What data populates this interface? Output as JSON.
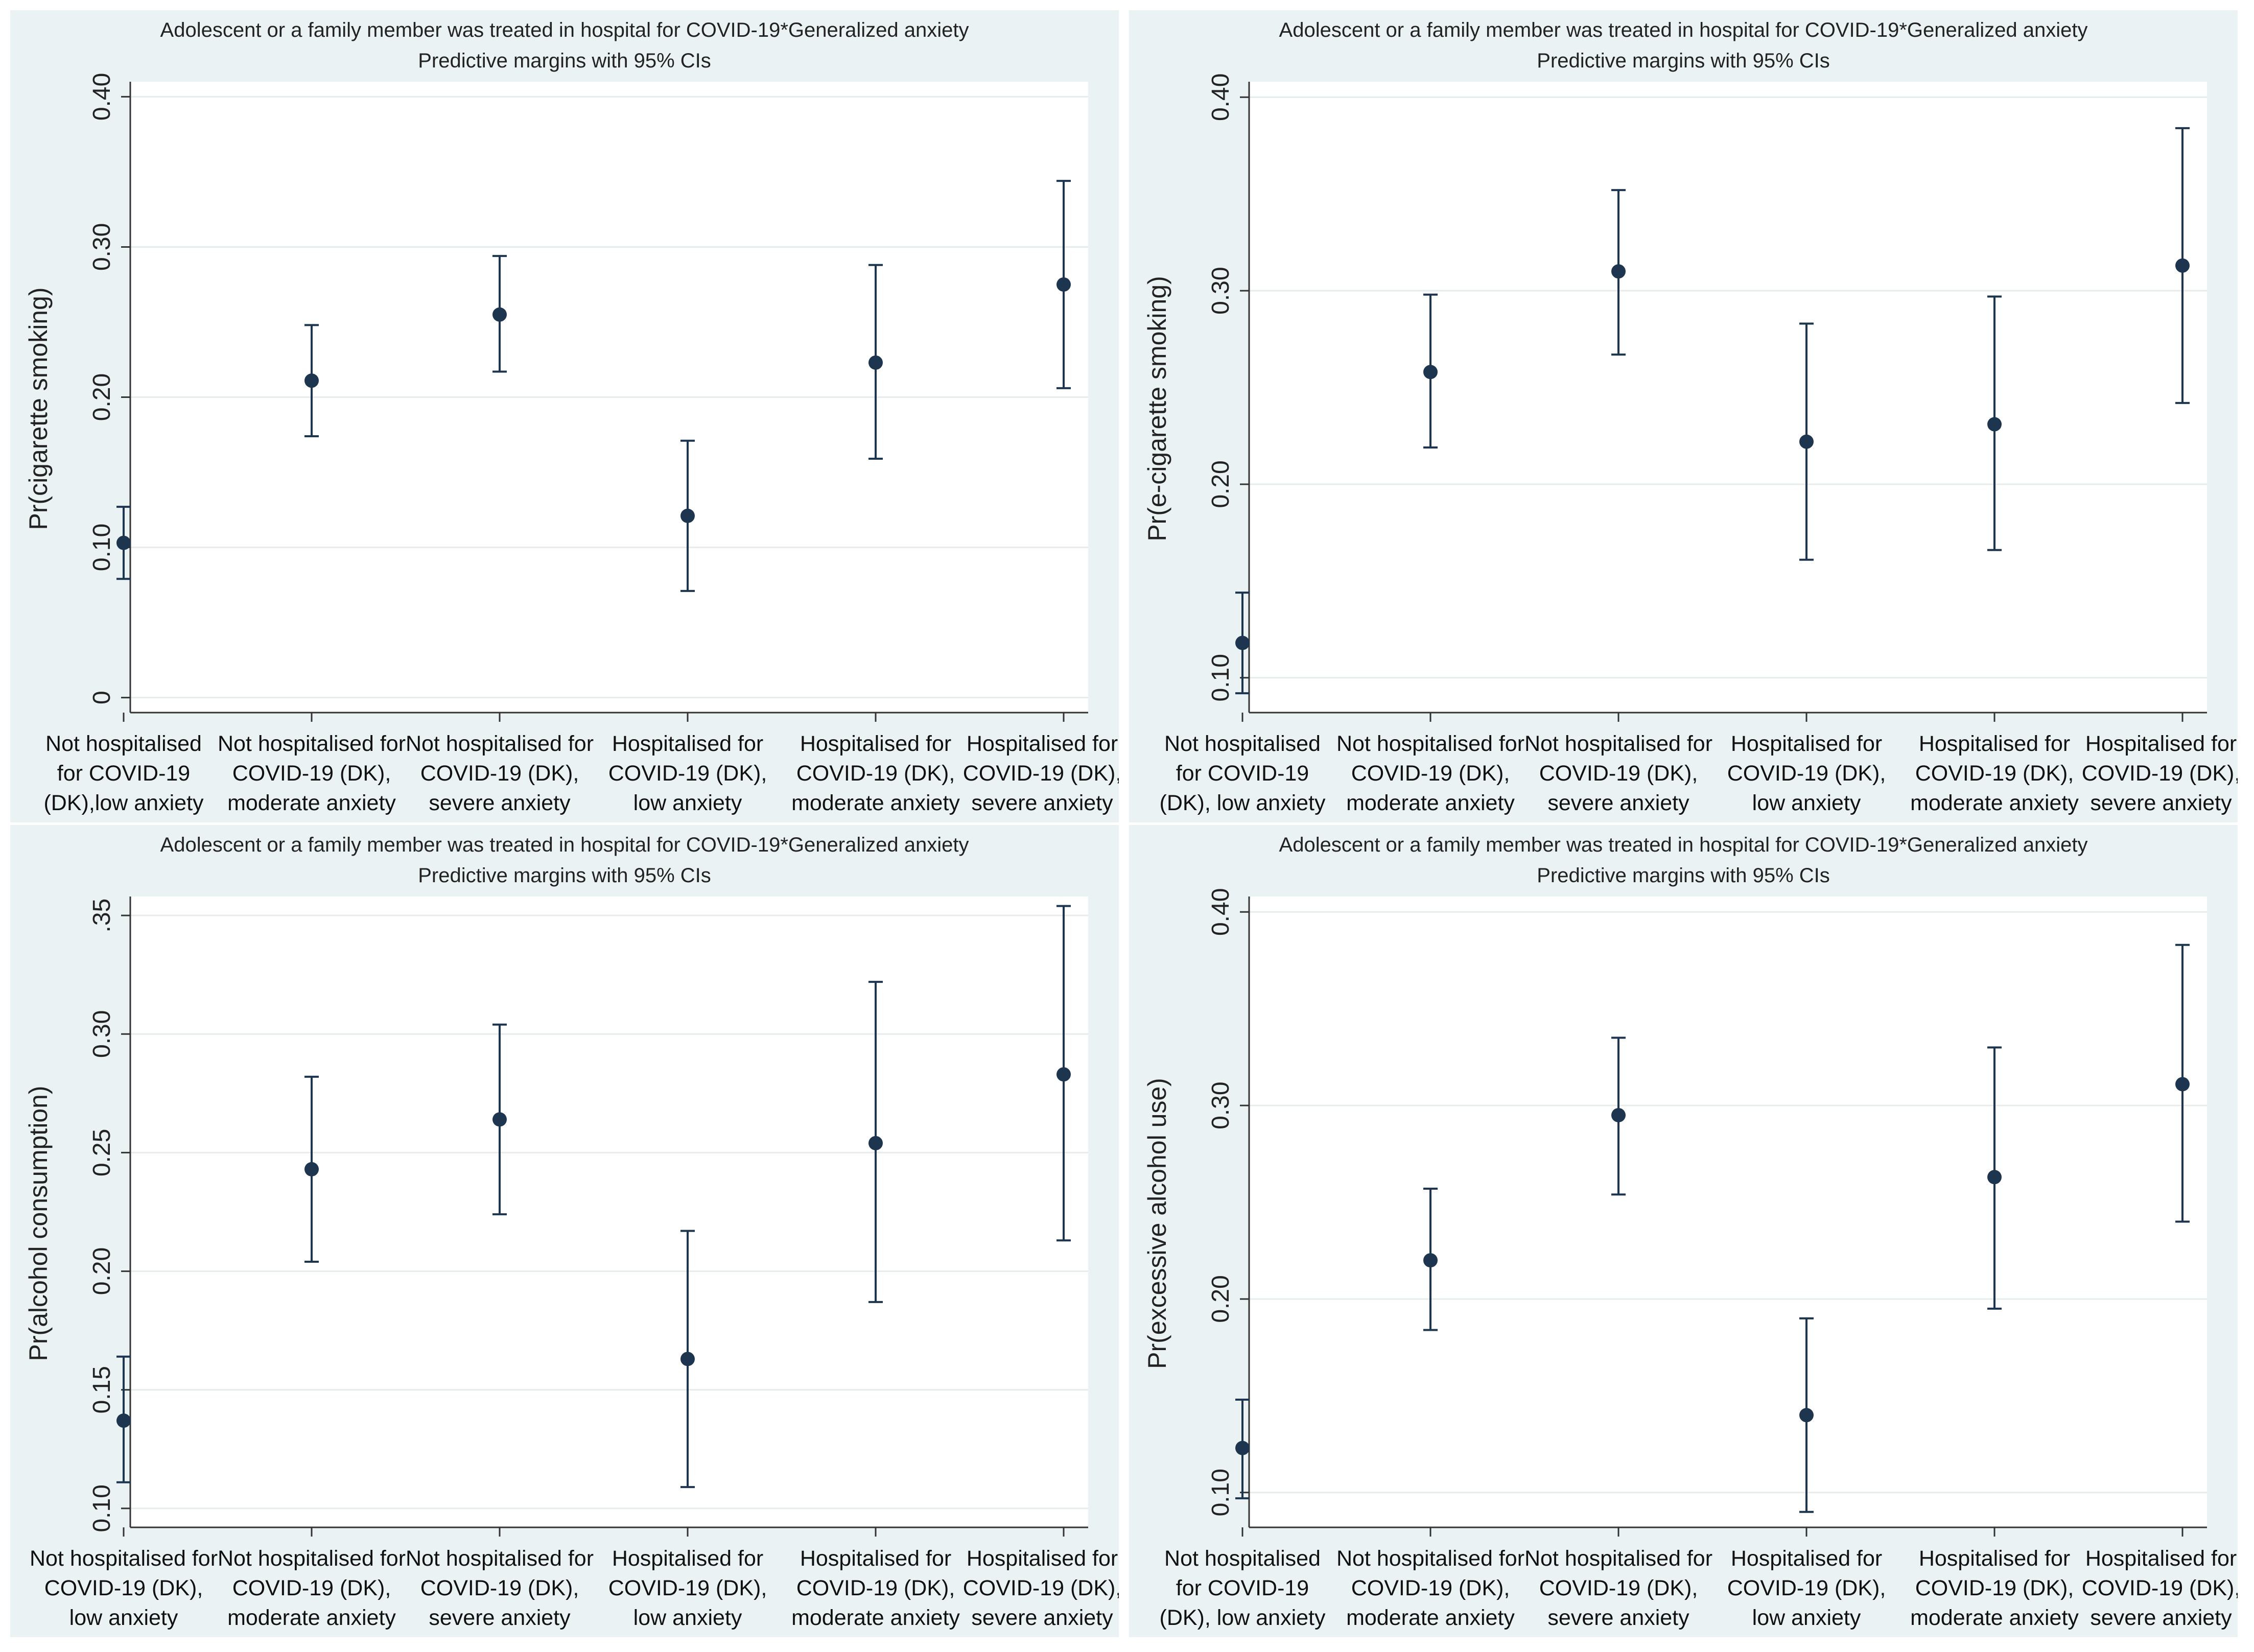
{
  "chart_data": [
    {
      "type": "scatter",
      "panel": "a",
      "title": "Adolescent or a family member was treated in hospital for COVID-19*Generalized anxiety",
      "subtitle": "Predictive margins with 95% CIs",
      "ylabel": "Pr(cigarette smoking)",
      "yticks": [
        "0",
        "0.10",
        "0.20",
        "0.30",
        "0.40"
      ],
      "ytick_values": [
        0,
        0.1,
        0.2,
        0.3,
        0.4
      ],
      "ylim": [
        -0.01,
        0.41
      ],
      "categories": [
        [
          "Not hospitalised",
          "for COVID-19",
          "(DK),low anxiety"
        ],
        [
          "Not hospitalised for",
          "COVID-19 (DK),",
          "moderate anxiety"
        ],
        [
          "Not hospitalised for",
          "COVID-19 (DK),",
          "severe anxiety"
        ],
        [
          "Hospitalised for",
          "COVID-19 (DK),",
          "low anxiety"
        ],
        [
          "Hospitalised for",
          "COVID-19 (DK),",
          "moderate anxiety"
        ],
        [
          "Hospitalised for",
          "COVID-19 (DK),",
          "severe anxiety"
        ]
      ],
      "values": [
        0.103,
        0.211,
        0.255,
        0.121,
        0.223,
        0.275
      ],
      "ci_low": [
        0.079,
        0.174,
        0.217,
        0.071,
        0.159,
        0.206
      ],
      "ci_high": [
        0.127,
        0.248,
        0.294,
        0.171,
        0.288,
        0.344
      ]
    },
    {
      "type": "scatter",
      "panel": "b",
      "title": "Adolescent or a family member was treated in hospital for COVID-19*Generalized anxiety",
      "subtitle": "Predictive margins with 95% CIs",
      "ylabel": "Pr(e-cigarette smoking)",
      "yticks": [
        "0.10",
        "0.20",
        "0.30",
        "0.40"
      ],
      "ytick_values": [
        0.1,
        0.2,
        0.3,
        0.4
      ],
      "ylim": [
        0.082,
        0.408
      ],
      "categories": [
        [
          "Not hospitalised",
          "for COVID-19",
          "(DK), low anxiety"
        ],
        [
          "Not hospitalised for",
          "COVID-19 (DK),",
          "moderate anxiety"
        ],
        [
          "Not hospitalised for",
          "COVID-19 (DK),",
          "severe anxiety"
        ],
        [
          "Hospitalised for",
          "COVID-19 (DK),",
          "low anxiety"
        ],
        [
          "Hospitalised for",
          "COVID-19 (DK),",
          "moderate anxiety"
        ],
        [
          "Hospitalised for",
          "COVID-19 (DK),",
          "severe anxiety"
        ]
      ],
      "values": [
        0.118,
        0.258,
        0.31,
        0.222,
        0.231,
        0.313
      ],
      "ci_low": [
        0.092,
        0.219,
        0.267,
        0.161,
        0.166,
        0.242
      ],
      "ci_high": [
        0.144,
        0.298,
        0.352,
        0.283,
        0.297,
        0.384
      ]
    },
    {
      "type": "scatter",
      "panel": "c",
      "title": "Adolescent or a family member was treated in hospital for COVID-19*Generalized anxiety",
      "subtitle": "Predictive margins with 95% CIs",
      "ylabel": "Pr(alcohol consumption)",
      "yticks": [
        "0.10",
        "0.15",
        "0.20",
        "0.25",
        "0.30",
        ".35"
      ],
      "ytick_values": [
        0.1,
        0.15,
        0.2,
        0.25,
        0.3,
        0.35
      ],
      "ylim": [
        0.092,
        0.358
      ],
      "categories": [
        [
          "Not hospitalised for",
          "COVID-19 (DK),",
          "low anxiety"
        ],
        [
          "Not hospitalised for",
          "COVID-19 (DK),",
          "moderate anxiety"
        ],
        [
          "Not hospitalised for",
          "COVID-19 (DK),",
          "severe anxiety"
        ],
        [
          "Hospitalised for",
          "COVID-19 (DK),",
          "low anxiety"
        ],
        [
          "Hospitalised for",
          "COVID-19 (DK),",
          "moderate anxiety"
        ],
        [
          "Hospitalised for",
          "COVID-19 (DK),",
          "severe anxiety"
        ]
      ],
      "values": [
        0.137,
        0.243,
        0.264,
        0.163,
        0.254,
        0.283
      ],
      "ci_low": [
        0.111,
        0.204,
        0.224,
        0.109,
        0.187,
        0.213
      ],
      "ci_high": [
        0.164,
        0.282,
        0.304,
        0.217,
        0.322,
        0.354
      ]
    },
    {
      "type": "scatter",
      "panel": "d",
      "title": "Adolescent or a family member was treated in hospital for COVID-19*Generalized anxiety",
      "subtitle": "Predictive margins with 95% CIs",
      "ylabel": "Pr(excessive alcohol use)",
      "yticks": [
        "0.10",
        "0.20",
        "0.30",
        "0.40"
      ],
      "ytick_values": [
        0.1,
        0.2,
        0.3,
        0.4
      ],
      "ylim": [
        0.082,
        0.408
      ],
      "categories": [
        [
          "Not hospitalised",
          "for COVID-19",
          "(DK), low anxiety"
        ],
        [
          "Not hospitalised for",
          "COVID-19 (DK),",
          "moderate anxiety"
        ],
        [
          "Not hospitalised for",
          "COVID-19 (DK),",
          "severe anxiety"
        ],
        [
          "Hospitalised for",
          "COVID-19 (DK),",
          "low anxiety"
        ],
        [
          "Hospitalised for",
          "COVID-19 (DK),",
          "moderate anxiety"
        ],
        [
          "Hospitalised for",
          "COVID-19 (DK),",
          "severe anxiety"
        ]
      ],
      "values": [
        0.123,
        0.22,
        0.295,
        0.14,
        0.263,
        0.311
      ],
      "ci_low": [
        0.097,
        0.184,
        0.254,
        0.09,
        0.195,
        0.24
      ],
      "ci_high": [
        0.148,
        0.257,
        0.335,
        0.19,
        0.33,
        0.383
      ]
    }
  ]
}
